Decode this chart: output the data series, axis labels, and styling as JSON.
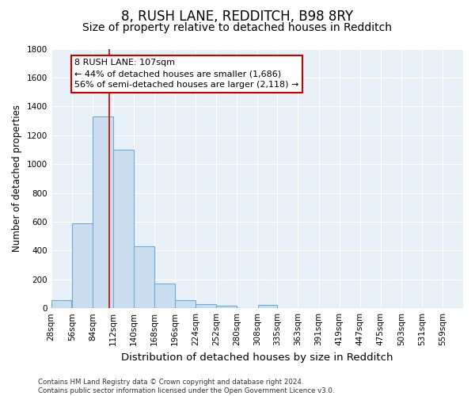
{
  "title": "8, RUSH LANE, REDDITCH, B98 8RY",
  "subtitle": "Size of property relative to detached houses in Redditch",
  "xlabel": "Distribution of detached houses by size in Redditch",
  "ylabel": "Number of detached properties",
  "bin_edges": [
    28,
    56,
    84,
    112,
    140,
    168,
    196,
    224,
    252,
    280,
    308,
    335,
    363,
    391,
    419,
    447,
    475,
    503,
    531,
    559,
    587
  ],
  "bar_heights": [
    55,
    590,
    1330,
    1100,
    430,
    170,
    55,
    30,
    20,
    0,
    25,
    0,
    0,
    0,
    0,
    0,
    0,
    0,
    0,
    0
  ],
  "bar_color": "#ccddf0",
  "bar_edge_color": "#6aaed6",
  "vline_x": 107,
  "vline_color": "#cc0000",
  "annotation_line1": "8 RUSH LANE: 107sqm",
  "annotation_line2": "← 44% of detached houses are smaller (1,686)",
  "annotation_line3": "56% of semi-detached houses are larger (2,118) →",
  "annotation_box_color": "#cc0000",
  "ylim": [
    0,
    1800
  ],
  "yticks": [
    0,
    200,
    400,
    600,
    800,
    1000,
    1200,
    1400,
    1600,
    1800
  ],
  "background_color": "#e8f0f8",
  "footer_text": "Contains HM Land Registry data © Crown copyright and database right 2024.\nContains public sector information licensed under the Open Government Licence v3.0.",
  "title_fontsize": 12,
  "subtitle_fontsize": 10,
  "xlabel_fontsize": 9.5,
  "ylabel_fontsize": 8.5,
  "tick_fontsize": 7.5,
  "annotation_fontsize": 8
}
